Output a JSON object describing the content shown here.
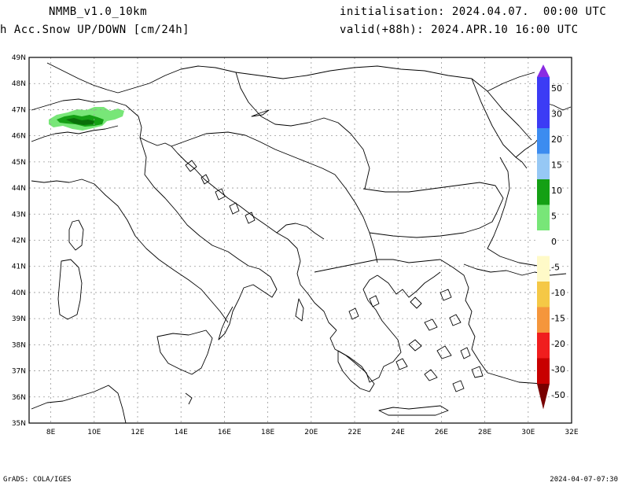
{
  "header": {
    "model": "NMMB_v1.0_10km",
    "variable": "h Acc.Snow UP/DOWN [cm/24h]",
    "init": "initialisation: 2024.04.07.  00:00 UTC",
    "valid": "valid(+88h): 2024.APR.10 16:00 UTC"
  },
  "axes": {
    "lat_labels": [
      "49N",
      "48N",
      "47N",
      "46N",
      "45N",
      "44N",
      "43N",
      "42N",
      "41N",
      "40N",
      "39N",
      "38N",
      "37N",
      "36N",
      "35N"
    ],
    "lon_labels": [
      "8E",
      "10E",
      "12E",
      "14E",
      "16E",
      "18E",
      "20E",
      "22E",
      "24E",
      "26E",
      "28E",
      "30E",
      "32E"
    ],
    "lat_range": [
      35,
      49
    ],
    "lon_range": [
      7,
      32
    ]
  },
  "colorbar": {
    "levels": [
      {
        "label": "50",
        "color": "#8a2be2"
      },
      {
        "label": "30",
        "color": "#3c3cf5"
      },
      {
        "label": "20",
        "color": "#3c8cf0"
      },
      {
        "label": "15",
        "color": "#96c8f5"
      },
      {
        "label": "10",
        "color": "#14a014"
      },
      {
        "label": "5",
        "color": "#78e678"
      },
      {
        "label": "0",
        "color": "#ffffff"
      },
      {
        "label": "-5",
        "color": "#fffac8"
      },
      {
        "label": "-10",
        "color": "#f5c846"
      },
      {
        "label": "-15",
        "color": "#f5963c"
      },
      {
        "label": "-20",
        "color": "#f01e1e"
      },
      {
        "label": "-30",
        "color": "#c80000"
      },
      {
        "label": "-50",
        "color": "#780000"
      }
    ]
  },
  "snow_region": {
    "light_color": "#78e678",
    "dark_color": "#14a014",
    "darkest_color": "#0a6e0a"
  },
  "footer": {
    "left": "GrADS: COLA/IGES",
    "right": "2024-04-07-07:30"
  }
}
